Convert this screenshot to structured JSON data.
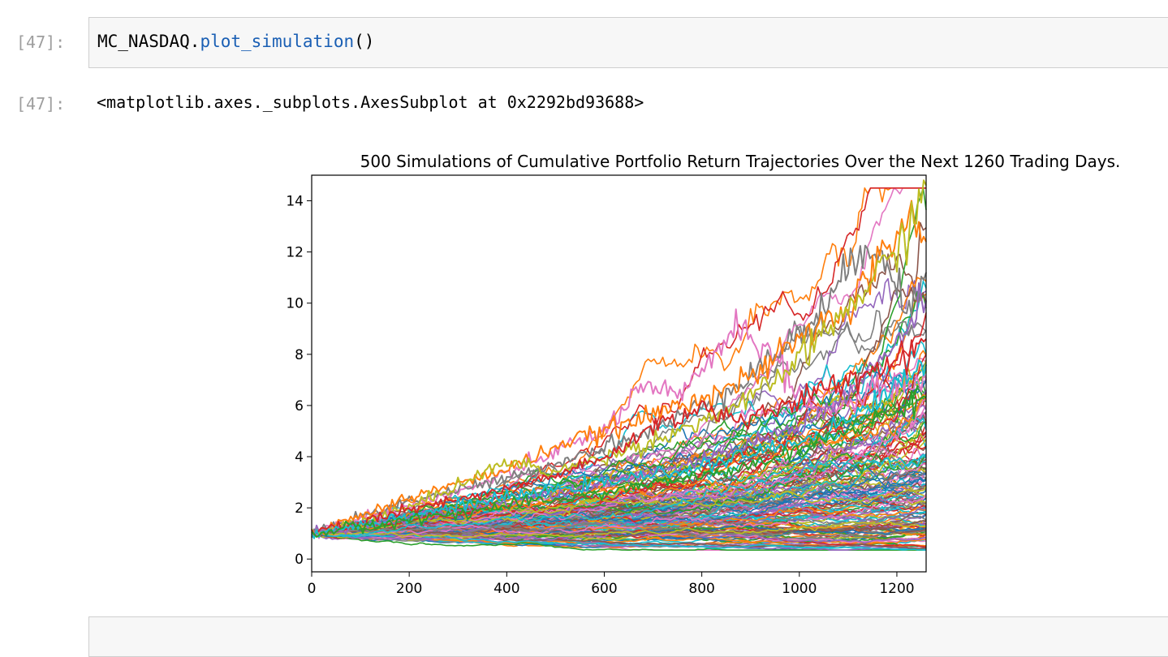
{
  "cells": [
    {
      "prompt_in": "[47]:",
      "code": {
        "object": "MC_NASDAQ",
        "dot": ".",
        "method": "plot_simulation",
        "call": "()"
      },
      "prompt_out": "[47]:",
      "output_text": "<matplotlib.axes._subplots.AxesSubplot at 0x2292bd93688>"
    }
  ],
  "colors": {
    "prompt": "#9e9e9e",
    "function_token": "#1a5fb4",
    "cell_background": "#f7f7f7",
    "cell_border": "#cfcfcf"
  },
  "chart_data": {
    "type": "line",
    "title": "500 Simulations of Cumulative Portfolio Return Trajectories Over the Next 1260 Trading Days.",
    "xlabel": "",
    "ylabel": "",
    "xlim": [
      0,
      1260
    ],
    "ylim": [
      -0.5,
      15
    ],
    "xticks": [
      0,
      200,
      400,
      600,
      800,
      1000,
      1200
    ],
    "yticks": [
      0,
      2,
      4,
      6,
      8,
      10,
      12,
      14
    ],
    "grid": false,
    "legend": "none",
    "num_series": 500,
    "palette": [
      "#1f77b4",
      "#ff7f0e",
      "#2ca02c",
      "#d62728",
      "#9467bd",
      "#8c564b",
      "#e377c2",
      "#7f7f7f",
      "#bcbd22",
      "#17becf"
    ],
    "highlight_series": [
      {
        "color": "#e377c2",
        "points": [
          [
            0,
            1.0
          ],
          [
            100,
            1.6
          ],
          [
            200,
            2.1
          ],
          [
            300,
            2.6
          ],
          [
            400,
            3.3
          ],
          [
            500,
            4.2
          ],
          [
            600,
            5.0
          ],
          [
            660,
            6.4
          ],
          [
            700,
            6.6
          ],
          [
            760,
            6.3
          ],
          [
            820,
            8.0
          ],
          [
            880,
            9.2
          ],
          [
            940,
            8.0
          ],
          [
            980,
            6.9
          ],
          [
            1020,
            6.0
          ],
          [
            1080,
            5.8
          ],
          [
            1140,
            6.5
          ],
          [
            1200,
            6.8
          ],
          [
            1260,
            7.0
          ]
        ]
      },
      {
        "color": "#7f7f7f",
        "points": [
          [
            0,
            1.0
          ],
          [
            200,
            2.3
          ],
          [
            400,
            3.1
          ],
          [
            600,
            4.4
          ],
          [
            700,
            5.0
          ],
          [
            800,
            6.0
          ],
          [
            900,
            7.2
          ],
          [
            1000,
            8.8
          ],
          [
            1080,
            10.5
          ],
          [
            1140,
            12.5
          ],
          [
            1170,
            12.2
          ],
          [
            1220,
            9.5
          ],
          [
            1260,
            11.2
          ]
        ]
      },
      {
        "color": "#ff7f0e",
        "points": [
          [
            0,
            1.0
          ],
          [
            200,
            2.4
          ],
          [
            400,
            3.5
          ],
          [
            500,
            4.4
          ],
          [
            600,
            5.0
          ],
          [
            700,
            5.6
          ],
          [
            800,
            6.4
          ],
          [
            900,
            7.0
          ],
          [
            1000,
            8.6
          ],
          [
            1100,
            9.8
          ],
          [
            1160,
            11.5
          ],
          [
            1200,
            12.8
          ],
          [
            1230,
            13.4
          ],
          [
            1260,
            12.4
          ]
        ]
      },
      {
        "color": "#bcbd22",
        "points": [
          [
            0,
            1.0
          ],
          [
            200,
            2.0
          ],
          [
            400,
            3.8
          ],
          [
            500,
            3.4
          ],
          [
            600,
            4.0
          ],
          [
            700,
            4.6
          ],
          [
            800,
            5.4
          ],
          [
            900,
            6.2
          ],
          [
            1000,
            7.8
          ],
          [
            1100,
            9.8
          ],
          [
            1200,
            12.0
          ],
          [
            1260,
            14.6
          ]
        ]
      },
      {
        "color": "#9467bd",
        "points": [
          [
            0,
            1.0
          ],
          [
            200,
            1.6
          ],
          [
            400,
            2.2
          ],
          [
            600,
            3.0
          ],
          [
            800,
            3.8
          ],
          [
            1000,
            5.2
          ],
          [
            1100,
            6.4
          ],
          [
            1200,
            8.4
          ],
          [
            1260,
            10.1
          ]
        ]
      },
      {
        "color": "#d62728",
        "points": [
          [
            0,
            1.0
          ],
          [
            200,
            1.9
          ],
          [
            400,
            2.7
          ],
          [
            600,
            3.9
          ],
          [
            700,
            5.2
          ],
          [
            800,
            5.9
          ],
          [
            900,
            5.4
          ],
          [
            1000,
            6.2
          ],
          [
            1100,
            7.0
          ],
          [
            1200,
            7.8
          ],
          [
            1260,
            8.6
          ]
        ]
      },
      {
        "color": "#17becf",
        "points": [
          [
            0,
            1.0
          ],
          [
            200,
            1.7
          ],
          [
            400,
            2.4
          ],
          [
            600,
            3.0
          ],
          [
            800,
            3.6
          ],
          [
            1000,
            4.6
          ],
          [
            1100,
            5.4
          ],
          [
            1200,
            6.8
          ],
          [
            1260,
            7.6
          ]
        ]
      },
      {
        "color": "#2ca02c",
        "points": [
          [
            0,
            1.0
          ],
          [
            300,
            1.8
          ],
          [
            600,
            2.6
          ],
          [
            900,
            3.6
          ],
          [
            1100,
            5.0
          ],
          [
            1260,
            6.3
          ]
        ]
      }
    ]
  }
}
